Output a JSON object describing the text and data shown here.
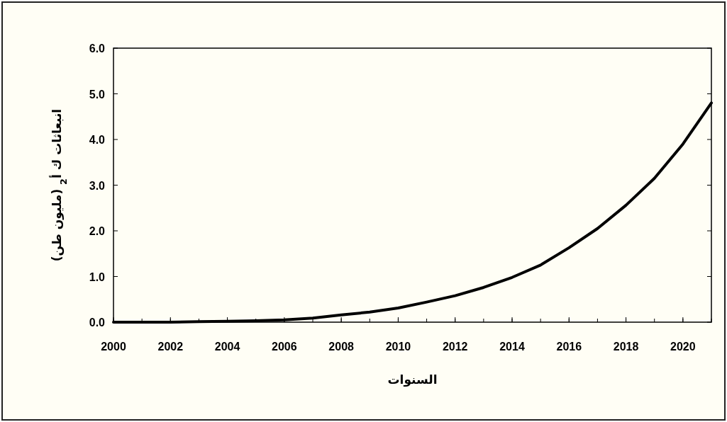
{
  "chart_data": {
    "type": "line",
    "xlabel": "السنوات",
    "ylabel": "انبعاثات ك أ$_{2}$ (مليون طن)",
    "x": [
      2000,
      2001,
      2002,
      2003,
      2004,
      2005,
      2006,
      2007,
      2008,
      2009,
      2010,
      2011,
      2012,
      2013,
      2014,
      2015,
      2016,
      2017,
      2018,
      2019,
      2020,
      2021
    ],
    "series": [
      {
        "color": "#000000",
        "values": [
          0,
          0,
          0,
          0.01,
          0.02,
          0.03,
          0.05,
          0.09,
          0.16,
          0.22,
          0.31,
          0.44,
          0.58,
          0.76,
          0.98,
          1.25,
          1.63,
          2.05,
          2.56,
          3.15,
          3.9,
          4.8
        ]
      }
    ],
    "xlim": [
      2000,
      2021
    ],
    "ylim": [
      0,
      6
    ],
    "xticks": [
      2000,
      2002,
      2004,
      2006,
      2008,
      2010,
      2012,
      2014,
      2016,
      2018,
      2020
    ],
    "yticks": [
      {
        "value": 0,
        "label": "0.0"
      },
      {
        "value": 1,
        "label": "1.0"
      },
      {
        "value": 2,
        "label": "2.0"
      },
      {
        "value": 3,
        "label": "3.0"
      },
      {
        "value": 4,
        "label": "4.0"
      },
      {
        "value": 5,
        "label": "5.0"
      },
      {
        "value": 6,
        "label": "6.0"
      }
    ],
    "marker": "none",
    "line_style": "solid"
  }
}
